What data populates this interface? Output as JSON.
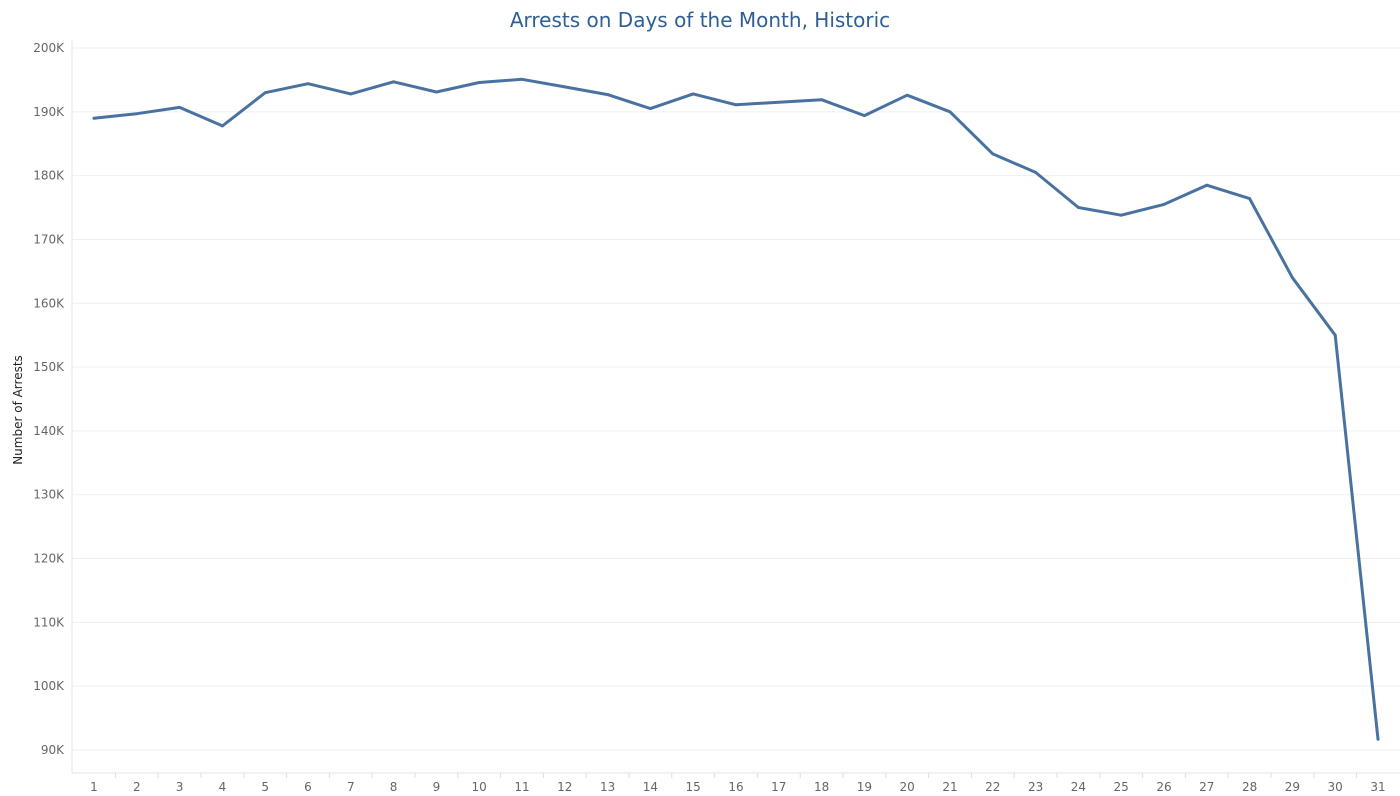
{
  "chart_data": {
    "type": "line",
    "title": "Arrests on Days of the Month, Historic",
    "xlabel": "",
    "ylabel": "Number of Arrests",
    "categories": [
      "1",
      "2",
      "3",
      "4",
      "5",
      "6",
      "7",
      "8",
      "9",
      "10",
      "11",
      "12",
      "13",
      "14",
      "15",
      "16",
      "17",
      "18",
      "19",
      "20",
      "21",
      "22",
      "23",
      "24",
      "25",
      "26",
      "27",
      "28",
      "29",
      "30",
      "31"
    ],
    "series": [
      {
        "values": [
          189000,
          189700,
          190700,
          187800,
          193000,
          194400,
          192800,
          194700,
          193100,
          194600,
          195100,
          193900,
          192700,
          190500,
          192800,
          191100,
          191500,
          191900,
          189400,
          192600,
          190000,
          183400,
          180500,
          175000,
          173800,
          175500,
          178500,
          176400,
          164000,
          155000,
          91700
        ]
      }
    ],
    "yticks": [
      90000,
      100000,
      110000,
      120000,
      130000,
      140000,
      150000,
      160000,
      170000,
      180000,
      190000,
      200000
    ],
    "ytick_labels": [
      "90K",
      "100K",
      "110K",
      "120K",
      "130K",
      "140K",
      "150K",
      "160K",
      "170K",
      "180K",
      "190K",
      "200K"
    ],
    "ylim": [
      88000,
      201000
    ],
    "grid": true,
    "line_color": "#4a72a1"
  }
}
